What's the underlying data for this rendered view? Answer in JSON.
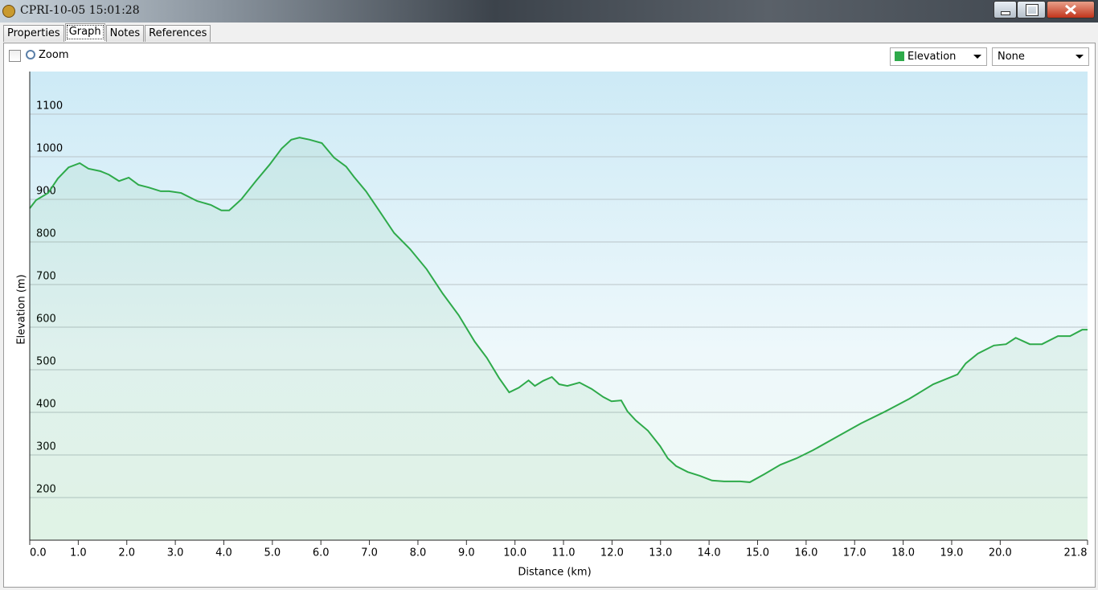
{
  "window": {
    "title": "CPRI-10-05 15:01:28"
  },
  "tabs": [
    "Properties",
    "Graph",
    "Notes",
    "References"
  ],
  "active_tab": "Graph",
  "toolbar": {
    "zoom_label": "Zoom",
    "zoom_checked": false,
    "second_select": "None"
  },
  "chart_data": {
    "type": "area",
    "xlabel": "Distance (km)",
    "ylabel": "Elevation (m)",
    "x": [
      0,
      0.13,
      0.38,
      0.58,
      0.8,
      1.03,
      1.21,
      1.46,
      1.63,
      1.84,
      2.04,
      2.24,
      2.45,
      2.7,
      2.87,
      3.12,
      3.45,
      3.73,
      3.95,
      4.11,
      4.36,
      4.66,
      4.94,
      5.19,
      5.39,
      5.56,
      5.77,
      6.02,
      6.27,
      6.52,
      6.68,
      6.93,
      7.18,
      7.51,
      7.84,
      8.18,
      8.51,
      8.84,
      9.17,
      9.42,
      9.67,
      9.88,
      10.08,
      10.28,
      10.41,
      10.58,
      10.76,
      10.91,
      11.08,
      11.33,
      11.58,
      11.82,
      11.99,
      12.19,
      12.32,
      12.49,
      12.74,
      12.99,
      13.15,
      13.32,
      13.56,
      13.81,
      14.06,
      14.31,
      14.64,
      14.84,
      15.14,
      15.47,
      15.8,
      16.14,
      16.64,
      17.13,
      17.63,
      18.13,
      18.62,
      19.12,
      19.29,
      19.54,
      19.87,
      20.12,
      20.32,
      20.61,
      20.86,
      21.19,
      21.44,
      21.69,
      21.8
    ],
    "series": [
      {
        "name": "Elevation",
        "color": "#2eaa4a",
        "values": [
          879,
          898,
          915,
          949,
          975,
          985,
          972,
          966,
          958,
          943,
          951,
          934,
          928,
          919,
          919,
          915,
          896,
          887,
          874,
          874,
          900,
          943,
          981,
          1019,
          1040,
          1045,
          1040,
          1032,
          998,
          977,
          953,
          919,
          877,
          821,
          783,
          736,
          679,
          628,
          566,
          528,
          481,
          447,
          458,
          475,
          462,
          474,
          483,
          466,
          462,
          470,
          455,
          436,
          426,
          428,
          402,
          381,
          357,
          321,
          292,
          274,
          260,
          251,
          240,
          238,
          238,
          236,
          255,
          277,
          292,
          311,
          343,
          374,
          402,
          432,
          466,
          489,
          515,
          538,
          557,
          560,
          575,
          560,
          560,
          579,
          579,
          594,
          594
        ]
      }
    ],
    "xlim": [
      0,
      21.8
    ],
    "ylim": [
      100,
      1200
    ],
    "xticks": [
      {
        "value": 0,
        "label": "0.0"
      },
      {
        "value": 1,
        "label": "1.0"
      },
      {
        "value": 2,
        "label": "2.0"
      },
      {
        "value": 3,
        "label": "3.0"
      },
      {
        "value": 4,
        "label": "4.0"
      },
      {
        "value": 5,
        "label": "5.0"
      },
      {
        "value": 6,
        "label": "6.0"
      },
      {
        "value": 7,
        "label": "7.0"
      },
      {
        "value": 8,
        "label": "8.0"
      },
      {
        "value": 9,
        "label": "9.0"
      },
      {
        "value": 10,
        "label": "10.0"
      },
      {
        "value": 11,
        "label": "11.0"
      },
      {
        "value": 12,
        "label": "12.0"
      },
      {
        "value": 13,
        "label": "13.0"
      },
      {
        "value": 14,
        "label": "14.0"
      },
      {
        "value": 15,
        "label": "15.0"
      },
      {
        "value": 16,
        "label": "16.0"
      },
      {
        "value": 17,
        "label": "17.0"
      },
      {
        "value": 18,
        "label": "18.0"
      },
      {
        "value": 19,
        "label": "19.0"
      },
      {
        "value": 20,
        "label": "20.0"
      },
      {
        "value": 21.8,
        "label": "21.8"
      }
    ],
    "yticks": [
      200,
      300,
      400,
      500,
      600,
      700,
      800,
      900,
      1000,
      1100
    ],
    "grid": true
  }
}
